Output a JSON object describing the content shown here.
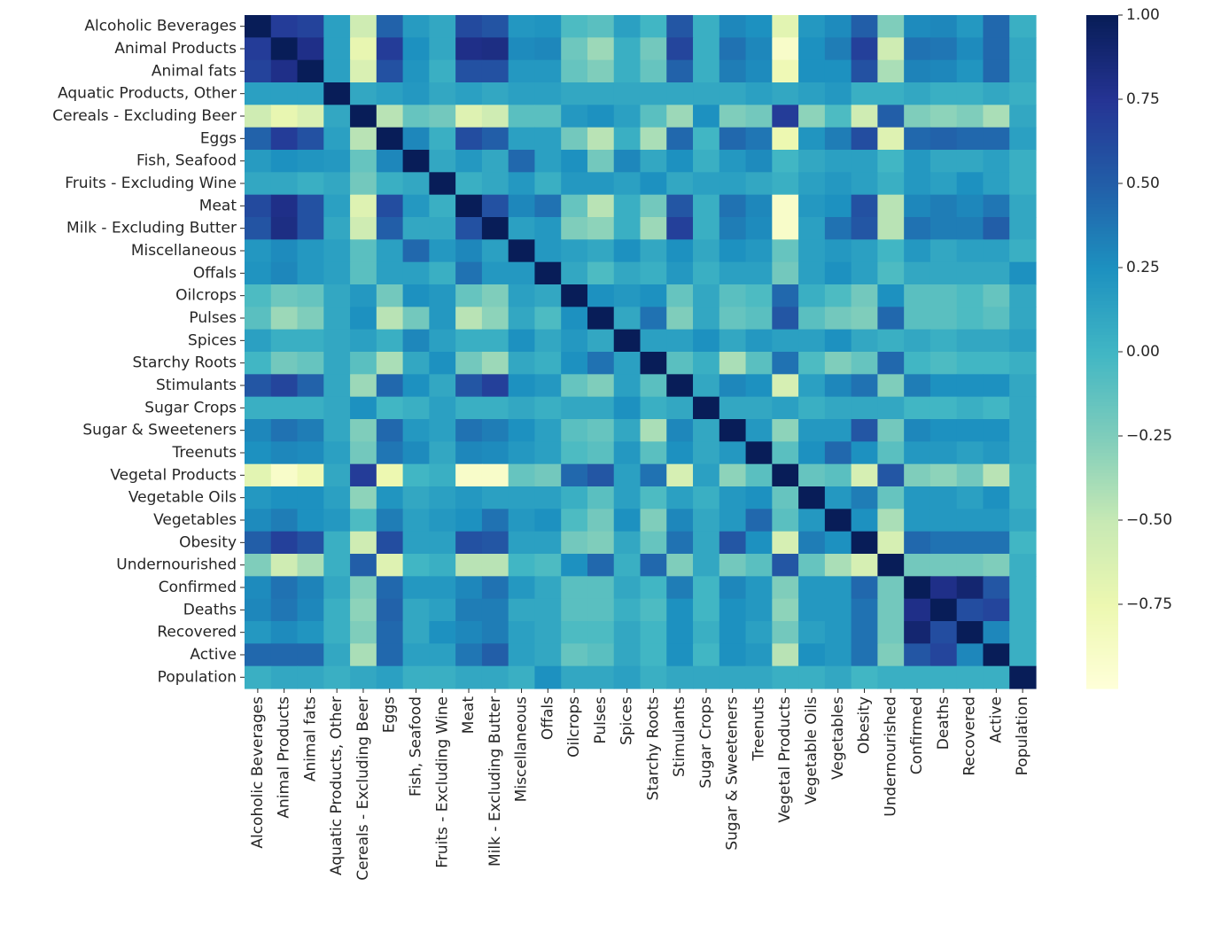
{
  "chart_data": {
    "type": "heatmap",
    "title": "",
    "xlabel": "",
    "ylabel": "",
    "labels": [
      "Alcoholic Beverages",
      "Animal Products",
      "Animal fats",
      "Aquatic Products, Other",
      "Cereals - Excluding Beer",
      "Eggs",
      "Fish, Seafood",
      "Fruits - Excluding Wine",
      "Meat",
      "Milk - Excluding Butter",
      "Miscellaneous",
      "Offals",
      "Oilcrops",
      "Pulses",
      "Spices",
      "Starchy Roots",
      "Stimulants",
      "Sugar Crops",
      "Sugar & Sweeteners",
      "Treenuts",
      "Vegetal Products",
      "Vegetable Oils",
      "Vegetables",
      "Obesity",
      "Undernourished",
      "Confirmed",
      "Deaths",
      "Recovered",
      "Active",
      "Population"
    ],
    "colormap": "YlGnBu",
    "vmin": -1.0,
    "vmax": 1.0,
    "colorbar_ticks": [
      1.0,
      0.75,
      0.5,
      0.25,
      0.0,
      -0.25,
      -0.5,
      -0.75
    ],
    "colorbar_tick_labels": [
      "1.00",
      "0.75",
      "0.50",
      "0.25",
      "0.00",
      "−0.25",
      "−0.50",
      "−0.75"
    ],
    "values": [
      [
        1.0,
        0.7,
        0.66,
        0.15,
        -0.55,
        0.48,
        0.18,
        0.1,
        0.62,
        0.56,
        0.21,
        0.23,
        -0.05,
        -0.1,
        0.15,
        0.0,
        0.55,
        0.05,
        0.3,
        0.25,
        -0.68,
        0.2,
        0.28,
        0.5,
        -0.25,
        0.28,
        0.3,
        0.2,
        0.45,
        0.05
      ],
      [
        0.7,
        1.0,
        0.8,
        0.15,
        -0.72,
        0.7,
        0.25,
        0.1,
        0.8,
        0.82,
        0.28,
        0.3,
        -0.18,
        -0.35,
        0.05,
        -0.2,
        0.65,
        0.05,
        0.4,
        0.3,
        -0.9,
        0.25,
        0.35,
        0.68,
        -0.55,
        0.4,
        0.38,
        0.28,
        0.45,
        0.1
      ],
      [
        0.66,
        0.8,
        1.0,
        0.15,
        -0.62,
        0.58,
        0.22,
        0.05,
        0.58,
        0.58,
        0.2,
        0.2,
        -0.15,
        -0.25,
        0.05,
        -0.15,
        0.48,
        0.05,
        0.35,
        0.28,
        -0.78,
        0.25,
        0.25,
        0.58,
        -0.4,
        0.32,
        0.3,
        0.22,
        0.45,
        0.1
      ],
      [
        0.15,
        0.15,
        0.15,
        1.0,
        0.1,
        0.15,
        0.2,
        0.1,
        0.15,
        0.1,
        0.15,
        0.15,
        0.1,
        0.1,
        0.1,
        0.1,
        0.1,
        0.1,
        0.1,
        0.15,
        0.1,
        0.15,
        0.2,
        0.05,
        0.05,
        0.1,
        0.05,
        0.05,
        0.1,
        0.05
      ],
      [
        -0.55,
        -0.72,
        -0.62,
        0.1,
        1.0,
        -0.45,
        -0.15,
        -0.2,
        -0.65,
        -0.55,
        -0.1,
        -0.1,
        0.2,
        0.25,
        0.15,
        -0.1,
        -0.35,
        0.25,
        -0.25,
        -0.2,
        0.7,
        -0.3,
        -0.05,
        -0.55,
        0.5,
        -0.25,
        -0.3,
        -0.25,
        -0.4,
        0.1
      ],
      [
        0.48,
        0.7,
        0.58,
        0.15,
        -0.45,
        1.0,
        0.3,
        0.05,
        0.6,
        0.5,
        0.15,
        0.15,
        -0.2,
        -0.45,
        0.05,
        -0.4,
        0.45,
        0.0,
        0.45,
        0.38,
        -0.75,
        0.22,
        0.35,
        0.6,
        -0.65,
        0.45,
        0.48,
        0.45,
        0.45,
        0.15
      ],
      [
        0.18,
        0.25,
        0.22,
        0.2,
        -0.15,
        0.3,
        1.0,
        0.1,
        0.2,
        0.1,
        0.45,
        0.15,
        0.25,
        -0.2,
        0.3,
        0.1,
        0.25,
        0.05,
        0.2,
        0.28,
        0.0,
        0.1,
        0.15,
        0.15,
        0.0,
        0.2,
        0.1,
        0.1,
        0.15,
        0.05
      ],
      [
        0.1,
        0.1,
        0.05,
        0.1,
        -0.2,
        0.05,
        0.1,
        1.0,
        0.05,
        0.1,
        0.2,
        0.05,
        0.2,
        0.2,
        0.15,
        0.25,
        0.1,
        0.15,
        0.15,
        0.1,
        0.05,
        0.15,
        0.2,
        0.15,
        0.05,
        0.2,
        0.15,
        0.25,
        0.15,
        0.05
      ],
      [
        0.62,
        0.8,
        0.58,
        0.15,
        -0.65,
        0.6,
        0.2,
        0.05,
        1.0,
        0.58,
        0.3,
        0.4,
        -0.15,
        -0.45,
        0.05,
        -0.2,
        0.55,
        0.05,
        0.4,
        0.3,
        -0.9,
        0.2,
        0.25,
        0.58,
        -0.45,
        0.3,
        0.35,
        0.3,
        0.38,
        0.1
      ],
      [
        0.56,
        0.82,
        0.58,
        0.1,
        -0.55,
        0.5,
        0.1,
        0.1,
        0.58,
        1.0,
        0.15,
        0.2,
        -0.25,
        -0.3,
        0.05,
        -0.35,
        0.68,
        0.05,
        0.35,
        0.28,
        -0.9,
        0.15,
        0.4,
        0.55,
        -0.45,
        0.4,
        0.35,
        0.35,
        0.5,
        0.1
      ],
      [
        0.21,
        0.28,
        0.2,
        0.15,
        -0.1,
        0.15,
        0.45,
        0.2,
        0.3,
        0.15,
        1.0,
        0.2,
        0.15,
        0.1,
        0.25,
        0.1,
        0.25,
        0.1,
        0.25,
        0.2,
        -0.15,
        0.15,
        0.2,
        0.15,
        0.0,
        0.2,
        0.1,
        0.15,
        0.15,
        0.05
      ],
      [
        0.23,
        0.3,
        0.2,
        0.15,
        -0.1,
        0.15,
        0.15,
        0.05,
        0.4,
        0.2,
        0.2,
        1.0,
        0.1,
        -0.05,
        0.1,
        0.05,
        0.2,
        0.05,
        0.15,
        0.15,
        -0.2,
        0.15,
        0.25,
        0.15,
        -0.05,
        0.1,
        0.1,
        0.1,
        0.1,
        0.25
      ],
      [
        -0.05,
        -0.18,
        -0.15,
        0.1,
        0.2,
        -0.2,
        0.25,
        0.2,
        -0.15,
        -0.25,
        0.15,
        0.1,
        1.0,
        0.25,
        0.2,
        0.25,
        -0.15,
        0.1,
        -0.1,
        -0.05,
        0.45,
        0.05,
        -0.05,
        -0.2,
        0.25,
        -0.1,
        -0.1,
        -0.05,
        -0.15,
        0.1
      ],
      [
        -0.1,
        -0.35,
        -0.25,
        0.1,
        0.25,
        -0.45,
        -0.2,
        0.2,
        -0.45,
        -0.3,
        0.1,
        -0.05,
        0.25,
        1.0,
        0.1,
        0.4,
        -0.25,
        0.1,
        -0.15,
        -0.1,
        0.55,
        -0.1,
        -0.2,
        -0.25,
        0.45,
        -0.1,
        -0.1,
        -0.05,
        -0.1,
        0.1
      ],
      [
        0.15,
        0.05,
        0.05,
        0.1,
        0.15,
        0.05,
        0.3,
        0.15,
        0.05,
        0.05,
        0.25,
        0.1,
        0.2,
        0.1,
        1.0,
        0.15,
        0.15,
        0.25,
        0.1,
        0.2,
        0.15,
        0.15,
        0.25,
        0.1,
        0.05,
        0.1,
        0.05,
        0.1,
        0.1,
        0.15
      ],
      [
        0.0,
        -0.2,
        -0.15,
        0.1,
        -0.1,
        -0.4,
        0.1,
        0.25,
        -0.2,
        -0.35,
        0.1,
        0.05,
        0.25,
        0.4,
        0.15,
        1.0,
        -0.1,
        0.05,
        -0.4,
        -0.1,
        0.4,
        -0.05,
        -0.25,
        -0.15,
        0.45,
        0.0,
        -0.05,
        0.0,
        0.0,
        0.05
      ],
      [
        0.55,
        0.65,
        0.48,
        0.1,
        -0.35,
        0.45,
        0.25,
        0.1,
        0.55,
        0.68,
        0.25,
        0.2,
        -0.15,
        -0.25,
        0.15,
        -0.1,
        1.0,
        0.1,
        0.3,
        0.25,
        -0.6,
        0.15,
        0.3,
        0.4,
        -0.25,
        0.35,
        0.25,
        0.25,
        0.25,
        0.1
      ],
      [
        0.05,
        0.05,
        0.05,
        0.1,
        0.25,
        0.0,
        0.05,
        0.15,
        0.05,
        0.05,
        0.1,
        0.05,
        0.1,
        0.1,
        0.25,
        0.05,
        0.1,
        1.0,
        0.1,
        0.1,
        0.15,
        0.05,
        0.1,
        0.1,
        0.1,
        0.0,
        0.0,
        0.05,
        0.0,
        0.1
      ],
      [
        0.3,
        0.4,
        0.35,
        0.1,
        -0.25,
        0.45,
        0.2,
        0.15,
        0.4,
        0.35,
        0.25,
        0.15,
        -0.1,
        -0.15,
        0.1,
        -0.4,
        0.3,
        0.1,
        1.0,
        0.2,
        -0.3,
        0.2,
        0.2,
        0.55,
        -0.2,
        0.3,
        0.25,
        0.25,
        0.25,
        0.1
      ],
      [
        0.25,
        0.3,
        0.28,
        0.15,
        -0.2,
        0.38,
        0.28,
        0.1,
        0.3,
        0.28,
        0.2,
        0.15,
        -0.05,
        -0.1,
        0.2,
        -0.1,
        0.25,
        0.1,
        0.2,
        1.0,
        -0.1,
        0.25,
        0.45,
        0.25,
        -0.1,
        0.2,
        0.2,
        0.15,
        0.2,
        0.1
      ],
      [
        -0.68,
        -0.9,
        -0.78,
        0.1,
        0.7,
        -0.75,
        0.0,
        0.05,
        -0.9,
        -0.9,
        -0.15,
        -0.2,
        0.45,
        0.55,
        0.15,
        0.4,
        -0.6,
        0.15,
        -0.3,
        -0.1,
        1.0,
        -0.15,
        -0.1,
        -0.6,
        0.55,
        -0.25,
        -0.3,
        -0.2,
        -0.45,
        0.05
      ],
      [
        0.2,
        0.25,
        0.25,
        0.15,
        -0.3,
        0.22,
        0.1,
        0.15,
        0.2,
        0.15,
        0.15,
        0.15,
        0.05,
        -0.1,
        0.15,
        -0.05,
        0.15,
        0.05,
        0.2,
        0.25,
        -0.15,
        1.0,
        0.2,
        0.35,
        -0.15,
        0.2,
        0.2,
        0.15,
        0.25,
        0.05
      ],
      [
        0.28,
        0.35,
        0.25,
        0.2,
        -0.05,
        0.35,
        0.15,
        0.2,
        0.25,
        0.4,
        0.2,
        0.25,
        -0.05,
        -0.2,
        0.25,
        -0.25,
        0.3,
        0.1,
        0.2,
        0.45,
        -0.1,
        0.2,
        1.0,
        0.25,
        -0.4,
        0.2,
        0.2,
        0.2,
        0.2,
        0.1
      ],
      [
        0.5,
        0.68,
        0.58,
        0.05,
        -0.55,
        0.6,
        0.15,
        0.15,
        0.58,
        0.55,
        0.15,
        0.15,
        -0.2,
        -0.25,
        0.1,
        -0.15,
        0.4,
        0.1,
        0.55,
        0.25,
        -0.6,
        0.35,
        0.25,
        1.0,
        -0.6,
        0.45,
        0.4,
        0.4,
        0.4,
        0.0
      ],
      [
        -0.25,
        -0.55,
        -0.4,
        0.05,
        0.5,
        -0.65,
        0.0,
        0.05,
        -0.45,
        -0.45,
        0.0,
        -0.05,
        0.25,
        0.45,
        0.05,
        0.45,
        -0.25,
        0.1,
        -0.2,
        -0.1,
        0.55,
        -0.15,
        -0.4,
        -0.6,
        1.0,
        -0.2,
        -0.2,
        -0.2,
        -0.25,
        0.05
      ],
      [
        0.28,
        0.4,
        0.32,
        0.1,
        -0.25,
        0.45,
        0.2,
        0.2,
        0.3,
        0.4,
        0.2,
        0.1,
        -0.1,
        -0.1,
        0.1,
        0.0,
        0.35,
        0.0,
        0.3,
        0.2,
        -0.25,
        0.2,
        0.2,
        0.45,
        -0.2,
        1.0,
        0.8,
        0.9,
        0.55,
        0.05
      ],
      [
        0.3,
        0.38,
        0.3,
        0.05,
        -0.3,
        0.48,
        0.1,
        0.15,
        0.35,
        0.35,
        0.1,
        0.1,
        -0.1,
        -0.1,
        0.05,
        -0.05,
        0.25,
        0.0,
        0.25,
        0.2,
        -0.3,
        0.2,
        0.2,
        0.4,
        -0.2,
        0.8,
        1.0,
        0.6,
        0.65,
        0.05
      ],
      [
        0.2,
        0.28,
        0.22,
        0.05,
        -0.25,
        0.45,
        0.1,
        0.25,
        0.3,
        0.35,
        0.15,
        0.1,
        -0.05,
        -0.05,
        0.1,
        0.0,
        0.25,
        0.05,
        0.25,
        0.15,
        -0.2,
        0.15,
        0.2,
        0.4,
        -0.2,
        0.9,
        0.6,
        1.0,
        0.3,
        0.05
      ],
      [
        0.45,
        0.45,
        0.45,
        0.1,
        -0.4,
        0.45,
        0.15,
        0.15,
        0.38,
        0.5,
        0.15,
        0.1,
        -0.15,
        -0.1,
        0.1,
        0.0,
        0.25,
        0.0,
        0.25,
        0.2,
        -0.45,
        0.25,
        0.2,
        0.4,
        -0.25,
        0.55,
        0.65,
        0.3,
        1.0,
        0.05
      ],
      [
        0.05,
        0.1,
        0.1,
        0.05,
        0.1,
        0.15,
        0.05,
        0.05,
        0.1,
        0.1,
        0.05,
        0.25,
        0.1,
        0.1,
        0.15,
        0.05,
        0.1,
        0.1,
        0.1,
        0.1,
        0.05,
        0.05,
        0.1,
        0.0,
        0.05,
        0.05,
        0.05,
        0.05,
        0.05,
        1.0
      ]
    ]
  }
}
